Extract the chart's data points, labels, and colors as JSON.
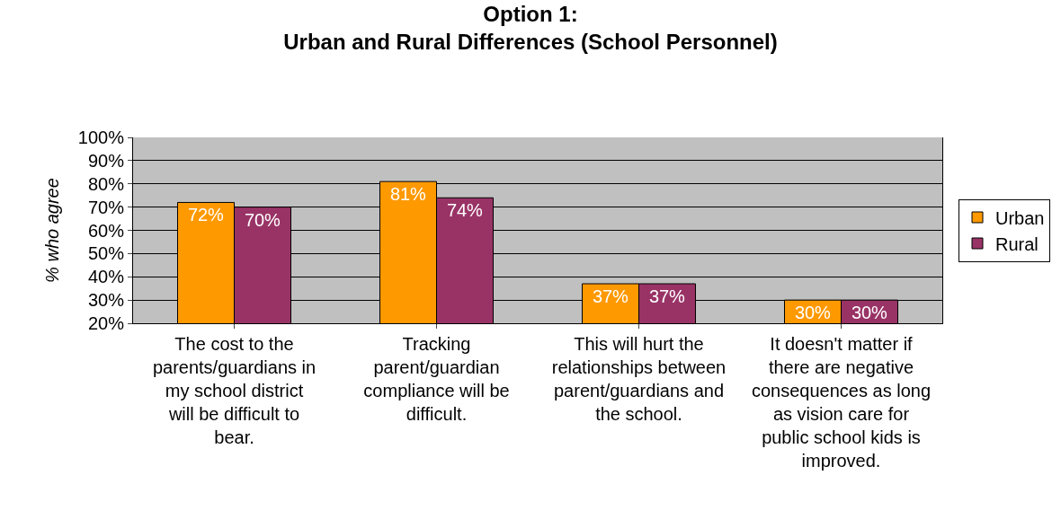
{
  "chart_data": {
    "type": "bar",
    "title": "Option 1:\nUrban and Rural Differences (School Personnel)",
    "ylabel": "% who agree",
    "categories": [
      "The cost to the parents/guardians in my school district will be difficult to bear.",
      "Tracking parent/guardian compliance will be difficult.",
      "This will hurt the relationships between parent/guardians and the school.",
      "It doesn't matter if there are negative consequences as long as vision care for public school kids is improved."
    ],
    "series": [
      {
        "name": "Urban",
        "color": "#ff9900",
        "values": [
          72,
          81,
          37,
          30
        ],
        "value_labels": [
          "72%",
          "81%",
          "37%",
          "30%"
        ]
      },
      {
        "name": "Rural",
        "color": "#993366",
        "values": [
          70,
          74,
          37,
          30
        ],
        "value_labels": [
          "70%",
          "74%",
          "37%",
          "30%"
        ]
      }
    ],
    "ylim": [
      20,
      100
    ],
    "yticks": [
      {
        "value": 20,
        "label": "20%"
      },
      {
        "value": 30,
        "label": "30%"
      },
      {
        "value": 40,
        "label": "40%"
      },
      {
        "value": 50,
        "label": "50%"
      },
      {
        "value": 60,
        "label": "60%"
      },
      {
        "value": 70,
        "label": "70%"
      },
      {
        "value": 80,
        "label": "80%"
      },
      {
        "value": 90,
        "label": "90%"
      },
      {
        "value": 100,
        "label": "100%"
      }
    ],
    "grid": "y",
    "legend": "right"
  }
}
